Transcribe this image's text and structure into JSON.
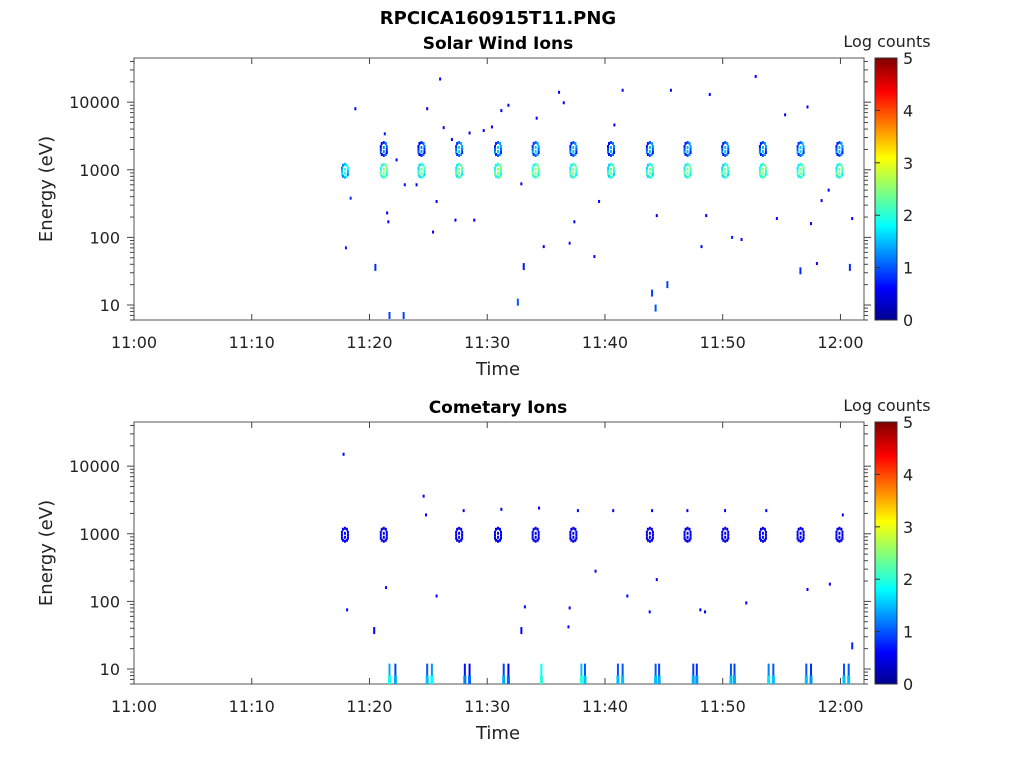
{
  "figure_title": "RPCICA160915T11.PNG",
  "chart_data": [
    {
      "type": "heatmap",
      "title": "Solar Wind Ions",
      "xlabel": "Time",
      "ylabel": "Energy (eV)",
      "x_ticks": [
        "11:00",
        "11:10",
        "11:20",
        "11:30",
        "11:40",
        "11:50",
        "12:00"
      ],
      "y_ticks": [
        "10",
        "100",
        "1000",
        "10000"
      ],
      "y_scale": "log",
      "xlim_minutes": [
        0,
        62
      ],
      "ylim": [
        6,
        45000
      ],
      "colorbar_label": "Log counts",
      "colorbar_ticks": [
        "0",
        "1",
        "2",
        "3",
        "4",
        "5"
      ],
      "colorbar_range": [
        0,
        5
      ],
      "colormap": [
        "#00008f",
        "#0000ff",
        "#00ffff",
        "#ffff00",
        "#ff0000",
        "#800000"
      ],
      "bursts": [
        {
          "t": 18.0,
          "e": 1000,
          "v": 2.0
        },
        {
          "t": 21.3,
          "e": 1000,
          "v": 2.6
        },
        {
          "t": 24.5,
          "e": 1000,
          "v": 2.4
        },
        {
          "t": 27.7,
          "e": 1000,
          "v": 2.5
        },
        {
          "t": 31.0,
          "e": 1000,
          "v": 2.6
        },
        {
          "t": 34.2,
          "e": 1000,
          "v": 2.6
        },
        {
          "t": 37.4,
          "e": 1000,
          "v": 2.5
        },
        {
          "t": 40.6,
          "e": 1000,
          "v": 2.4
        },
        {
          "t": 43.9,
          "e": 1000,
          "v": 2.4
        },
        {
          "t": 47.1,
          "e": 1000,
          "v": 2.5
        },
        {
          "t": 50.3,
          "e": 1000,
          "v": 2.4
        },
        {
          "t": 53.5,
          "e": 1000,
          "v": 2.6
        },
        {
          "t": 56.7,
          "e": 1000,
          "v": 2.5
        },
        {
          "t": 60.0,
          "e": 1000,
          "v": 2.5
        },
        {
          "t": 21.3,
          "e": 2100,
          "v": 1.3
        },
        {
          "t": 24.5,
          "e": 2100,
          "v": 1.3
        },
        {
          "t": 27.7,
          "e": 2100,
          "v": 1.6
        },
        {
          "t": 31.0,
          "e": 2100,
          "v": 1.6
        },
        {
          "t": 34.2,
          "e": 2100,
          "v": 1.6
        },
        {
          "t": 37.4,
          "e": 2100,
          "v": 1.5
        },
        {
          "t": 40.6,
          "e": 2100,
          "v": 1.4
        },
        {
          "t": 43.9,
          "e": 2100,
          "v": 1.5
        },
        {
          "t": 47.1,
          "e": 2100,
          "v": 1.5
        },
        {
          "t": 50.3,
          "e": 2100,
          "v": 1.5
        },
        {
          "t": 53.5,
          "e": 2100,
          "v": 1.5
        },
        {
          "t": 56.7,
          "e": 2100,
          "v": 1.6
        },
        {
          "t": 60.0,
          "e": 2100,
          "v": 1.5
        }
      ],
      "points": [
        {
          "t": 18.0,
          "e": 70,
          "v": 0.7
        },
        {
          "t": 18.4,
          "e": 380,
          "v": 0.8
        },
        {
          "t": 18.8,
          "e": 8000,
          "v": 0.6
        },
        {
          "t": 20.5,
          "e": 36,
          "v": 0.8
        },
        {
          "t": 21.3,
          "e": 3400,
          "v": 0.7
        },
        {
          "t": 21.5,
          "e": 230,
          "v": 0.6
        },
        {
          "t": 21.6,
          "e": 170,
          "v": 0.6
        },
        {
          "t": 21.7,
          "e": 7,
          "v": 0.9
        },
        {
          "t": 22.3,
          "e": 1400,
          "v": 0.6
        },
        {
          "t": 22.9,
          "e": 7,
          "v": 0.9
        },
        {
          "t": 23.0,
          "e": 600,
          "v": 0.7
        },
        {
          "t": 24.0,
          "e": 600,
          "v": 0.6
        },
        {
          "t": 24.9,
          "e": 8000,
          "v": 0.6
        },
        {
          "t": 25.4,
          "e": 120,
          "v": 0.6
        },
        {
          "t": 25.7,
          "e": 340,
          "v": 0.6
        },
        {
          "t": 26.0,
          "e": 22000,
          "v": 0.6
        },
        {
          "t": 26.3,
          "e": 4200,
          "v": 0.6
        },
        {
          "t": 27.0,
          "e": 2800,
          "v": 0.6
        },
        {
          "t": 27.3,
          "e": 180,
          "v": 0.6
        },
        {
          "t": 28.5,
          "e": 3500,
          "v": 0.6
        },
        {
          "t": 28.9,
          "e": 180,
          "v": 0.6
        },
        {
          "t": 29.7,
          "e": 3800,
          "v": 0.6
        },
        {
          "t": 30.4,
          "e": 4300,
          "v": 0.6
        },
        {
          "t": 31.2,
          "e": 7500,
          "v": 0.6
        },
        {
          "t": 31.8,
          "e": 9000,
          "v": 0.6
        },
        {
          "t": 32.6,
          "e": 11,
          "v": 1.0
        },
        {
          "t": 32.9,
          "e": 620,
          "v": 0.6
        },
        {
          "t": 33.1,
          "e": 37,
          "v": 0.7
        },
        {
          "t": 34.2,
          "e": 5800,
          "v": 0.6
        },
        {
          "t": 34.8,
          "e": 73,
          "v": 0.6
        },
        {
          "t": 36.1,
          "e": 14000,
          "v": 0.6
        },
        {
          "t": 36.5,
          "e": 9800,
          "v": 0.6
        },
        {
          "t": 37.0,
          "e": 82,
          "v": 0.7
        },
        {
          "t": 37.4,
          "e": 170,
          "v": 0.6
        },
        {
          "t": 39.1,
          "e": 52,
          "v": 0.6
        },
        {
          "t": 39.5,
          "e": 340,
          "v": 0.6
        },
        {
          "t": 40.8,
          "e": 4600,
          "v": 0.6
        },
        {
          "t": 41.5,
          "e": 15000,
          "v": 0.6
        },
        {
          "t": 44.0,
          "e": 15,
          "v": 0.9
        },
        {
          "t": 44.3,
          "e": 9,
          "v": 1.0
        },
        {
          "t": 44.4,
          "e": 210,
          "v": 0.6
        },
        {
          "t": 45.3,
          "e": 20,
          "v": 0.9
        },
        {
          "t": 45.6,
          "e": 15000,
          "v": 0.6
        },
        {
          "t": 48.9,
          "e": 13000,
          "v": 0.6
        },
        {
          "t": 48.2,
          "e": 73,
          "v": 0.6
        },
        {
          "t": 48.6,
          "e": 210,
          "v": 0.6
        },
        {
          "t": 50.8,
          "e": 100,
          "v": 0.7
        },
        {
          "t": 51.6,
          "e": 93,
          "v": 0.6
        },
        {
          "t": 52.8,
          "e": 24000,
          "v": 0.6
        },
        {
          "t": 54.6,
          "e": 190,
          "v": 0.6
        },
        {
          "t": 55.3,
          "e": 6500,
          "v": 0.6
        },
        {
          "t": 56.6,
          "e": 32,
          "v": 0.8
        },
        {
          "t": 57.2,
          "e": 8500,
          "v": 0.6
        },
        {
          "t": 57.5,
          "e": 160,
          "v": 0.6
        },
        {
          "t": 58.0,
          "e": 41,
          "v": 0.6
        },
        {
          "t": 58.4,
          "e": 350,
          "v": 0.6
        },
        {
          "t": 59.0,
          "e": 500,
          "v": 0.6
        },
        {
          "t": 60.8,
          "e": 36,
          "v": 0.8
        },
        {
          "t": 61.0,
          "e": 190,
          "v": 0.6
        }
      ]
    },
    {
      "type": "heatmap",
      "title": "Cometary Ions",
      "xlabel": "Time",
      "ylabel": "Energy (eV)",
      "x_ticks": [
        "11:00",
        "11:10",
        "11:20",
        "11:30",
        "11:40",
        "11:50",
        "12:00"
      ],
      "y_ticks": [
        "10",
        "100",
        "1000",
        "10000"
      ],
      "y_scale": "log",
      "xlim_minutes": [
        0,
        62
      ],
      "ylim": [
        6,
        45000
      ],
      "colorbar_label": "Log counts",
      "colorbar_ticks": [
        "0",
        "1",
        "2",
        "3",
        "4",
        "5"
      ],
      "colorbar_range": [
        0,
        5
      ],
      "colormap": [
        "#00008f",
        "#0000ff",
        "#00ffff",
        "#ffff00",
        "#ff0000",
        "#800000"
      ],
      "bursts": [
        {
          "t": 18.0,
          "e": 1000,
          "v": 0.6
        },
        {
          "t": 21.3,
          "e": 1000,
          "v": 0.6
        },
        {
          "t": 27.7,
          "e": 1000,
          "v": 0.6
        },
        {
          "t": 31.0,
          "e": 1000,
          "v": 0.6
        },
        {
          "t": 34.2,
          "e": 1000,
          "v": 0.6
        },
        {
          "t": 37.4,
          "e": 1000,
          "v": 0.6
        },
        {
          "t": 43.9,
          "e": 1000,
          "v": 0.6
        },
        {
          "t": 47.1,
          "e": 1000,
          "v": 0.6
        },
        {
          "t": 50.3,
          "e": 1000,
          "v": 0.6
        },
        {
          "t": 53.5,
          "e": 1000,
          "v": 0.6
        },
        {
          "t": 56.7,
          "e": 1000,
          "v": 0.6
        },
        {
          "t": 60.0,
          "e": 1000,
          "v": 0.6
        }
      ],
      "points": [
        {
          "t": 17.8,
          "e": 15000,
          "v": 0.6
        },
        {
          "t": 18.1,
          "e": 75,
          "v": 0.6
        },
        {
          "t": 20.4,
          "e": 37,
          "v": 0.6
        },
        {
          "t": 21.4,
          "e": 160,
          "v": 0.6
        },
        {
          "t": 24.6,
          "e": 3600,
          "v": 0.6
        },
        {
          "t": 24.8,
          "e": 1900,
          "v": 0.6
        },
        {
          "t": 25.7,
          "e": 120,
          "v": 0.6
        },
        {
          "t": 28.0,
          "e": 2200,
          "v": 0.6
        },
        {
          "t": 31.2,
          "e": 2300,
          "v": 0.6
        },
        {
          "t": 32.9,
          "e": 37,
          "v": 0.6
        },
        {
          "t": 33.2,
          "e": 83,
          "v": 0.6
        },
        {
          "t": 34.4,
          "e": 2400,
          "v": 0.6
        },
        {
          "t": 36.9,
          "e": 42,
          "v": 0.6
        },
        {
          "t": 37.0,
          "e": 80,
          "v": 0.6
        },
        {
          "t": 37.7,
          "e": 2200,
          "v": 0.6
        },
        {
          "t": 39.2,
          "e": 280,
          "v": 0.6
        },
        {
          "t": 40.7,
          "e": 2200,
          "v": 0.6
        },
        {
          "t": 41.9,
          "e": 120,
          "v": 0.6
        },
        {
          "t": 43.8,
          "e": 70,
          "v": 0.6
        },
        {
          "t": 44.0,
          "e": 2200,
          "v": 0.6
        },
        {
          "t": 44.4,
          "e": 210,
          "v": 0.6
        },
        {
          "t": 47.0,
          "e": 2200,
          "v": 0.6
        },
        {
          "t": 48.1,
          "e": 75,
          "v": 0.6
        },
        {
          "t": 48.5,
          "e": 70,
          "v": 0.6
        },
        {
          "t": 50.2,
          "e": 2200,
          "v": 0.6
        },
        {
          "t": 52.0,
          "e": 95,
          "v": 0.6
        },
        {
          "t": 53.7,
          "e": 2200,
          "v": 0.6
        },
        {
          "t": 57.2,
          "e": 150,
          "v": 0.6
        },
        {
          "t": 59.1,
          "e": 180,
          "v": 0.6
        },
        {
          "t": 60.2,
          "e": 1900,
          "v": 0.6
        },
        {
          "t": 61.0,
          "e": 22,
          "v": 0.8
        }
      ],
      "low_columns": [
        {
          "t": 21.7,
          "v": 1.4
        },
        {
          "t": 22.2,
          "v": 0.9
        },
        {
          "t": 24.9,
          "v": 1.0
        },
        {
          "t": 25.3,
          "v": 1.3
        },
        {
          "t": 28.1,
          "v": 0.7
        },
        {
          "t": 28.5,
          "v": 0.6
        },
        {
          "t": 31.4,
          "v": 0.9
        },
        {
          "t": 31.8,
          "v": 0.6
        },
        {
          "t": 34.6,
          "v": 1.8
        },
        {
          "t": 38.0,
          "v": 1.5
        },
        {
          "t": 38.3,
          "v": 1.0
        },
        {
          "t": 41.1,
          "v": 1.0
        },
        {
          "t": 41.5,
          "v": 1.0
        },
        {
          "t": 44.3,
          "v": 1.0
        },
        {
          "t": 44.6,
          "v": 0.9
        },
        {
          "t": 47.5,
          "v": 0.9
        },
        {
          "t": 47.8,
          "v": 0.8
        },
        {
          "t": 50.7,
          "v": 1.0
        },
        {
          "t": 51.0,
          "v": 0.9
        },
        {
          "t": 53.9,
          "v": 1.2
        },
        {
          "t": 54.3,
          "v": 1.0
        },
        {
          "t": 57.1,
          "v": 1.0
        },
        {
          "t": 57.5,
          "v": 0.8
        },
        {
          "t": 60.3,
          "v": 1.0
        },
        {
          "t": 60.7,
          "v": 1.0
        }
      ]
    }
  ]
}
